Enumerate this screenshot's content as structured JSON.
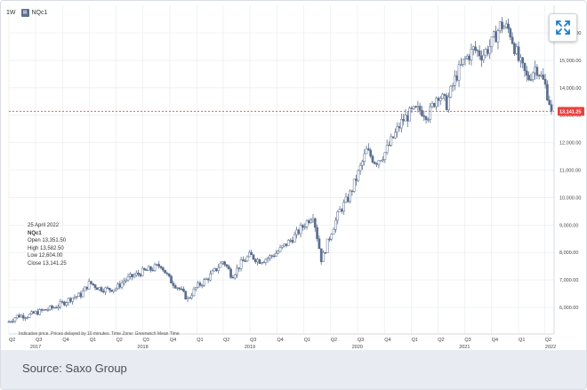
{
  "header": {
    "interval": "1W",
    "symbol": "NQc1"
  },
  "info": {
    "date": "25 April 2022",
    "symbol": "NQc1",
    "open": "Open 13,351.50",
    "high": "High 13,582.50",
    "low": "Low 12,604.00",
    "close": "Close 13,141.25"
  },
  "footer": {
    "note": "Indicative price. Prices delayed by 10 minutes.  Time Zone: Greenwich Mean Time",
    "source": "Source: Saxo Group"
  },
  "colors": {
    "candle": "#5b6f8f",
    "last_price_line": "#e8423f",
    "last_price_badge": "#e8423f",
    "grid": "#e6e9ee"
  },
  "icons": {
    "expand": "expand-arrows-icon"
  },
  "chart_data": {
    "type": "candlestick",
    "title": "",
    "xlabel": "",
    "ylabel": "",
    "ylim": [
      5500,
      16800
    ],
    "y_ticks": [
      6000,
      7000,
      8000,
      9000,
      10000,
      11000,
      12000,
      13000,
      14000,
      15000,
      16000
    ],
    "y_tick_labels": [
      "6,000.00",
      "7,000.00",
      "8,000.00",
      "9,000.00",
      "10,000.00",
      "11,000.00",
      "12,000.00",
      "13,000.00",
      "14,000.00",
      "15,000.00",
      "16,000.00"
    ],
    "x_range": [
      "2017-04-01",
      "2022-05-02"
    ],
    "x_ticks": [
      {
        "label": "Q2",
        "date": "2017-04-01"
      },
      {
        "label": "Q3",
        "date": "2017-07-01"
      },
      {
        "label": "Q4",
        "date": "2017-10-01"
      },
      {
        "label": "Q1",
        "date": "2018-01-01"
      },
      {
        "label": "Q2",
        "date": "2018-04-01"
      },
      {
        "label": "Q3",
        "date": "2018-07-01"
      },
      {
        "label": "Q4",
        "date": "2018-10-01"
      },
      {
        "label": "Q1",
        "date": "2019-01-01"
      },
      {
        "label": "Q2",
        "date": "2019-04-01"
      },
      {
        "label": "Q3",
        "date": "2019-07-01"
      },
      {
        "label": "Q4",
        "date": "2019-10-01"
      },
      {
        "label": "Q1",
        "date": "2020-01-01"
      },
      {
        "label": "Q2",
        "date": "2020-04-01"
      },
      {
        "label": "Q3",
        "date": "2020-07-01"
      },
      {
        "label": "Q4",
        "date": "2020-10-01"
      },
      {
        "label": "Q1",
        "date": "2021-01-01"
      },
      {
        "label": "Q2",
        "date": "2021-04-01"
      },
      {
        "label": "Q3",
        "date": "2021-07-01"
      },
      {
        "label": "Q4",
        "date": "2021-10-01"
      },
      {
        "label": "Q1",
        "date": "2022-01-01"
      },
      {
        "label": "Q2",
        "date": "2022-04-01"
      }
    ],
    "year_labels": [
      {
        "label": "2017",
        "date": "2017-07-01"
      },
      {
        "label": "2018",
        "date": "2018-07-01"
      },
      {
        "label": "2019",
        "date": "2019-07-01"
      },
      {
        "label": "2020",
        "date": "2020-07-01"
      },
      {
        "label": "2021",
        "date": "2021-07-01"
      },
      {
        "label": "2022",
        "date": "2022-04-20"
      }
    ],
    "last_price": 13141.25,
    "last_price_label": "13,141.25",
    "close_path": [
      [
        "2017-04-01",
        5480
      ],
      [
        "2017-05-01",
        5700
      ],
      [
        "2017-06-01",
        5690
      ],
      [
        "2017-07-01",
        5800
      ],
      [
        "2017-08-01",
        5900
      ],
      [
        "2017-09-01",
        6000
      ],
      [
        "2017-10-01",
        6150
      ],
      [
        "2017-11-01",
        6350
      ],
      [
        "2017-12-01",
        6450
      ],
      [
        "2018-01-01",
        6900
      ],
      [
        "2018-02-01",
        6700
      ],
      [
        "2018-03-01",
        6650
      ],
      [
        "2018-04-01",
        6700
      ],
      [
        "2018-05-01",
        7000
      ],
      [
        "2018-06-01",
        7150
      ],
      [
        "2018-07-01",
        7300
      ],
      [
        "2018-08-01",
        7400
      ],
      [
        "2018-09-01",
        7550
      ],
      [
        "2018-10-01",
        7000
      ],
      [
        "2018-11-01",
        6700
      ],
      [
        "2018-12-01",
        6300
      ],
      [
        "2019-01-01",
        6750
      ],
      [
        "2019-02-01",
        7000
      ],
      [
        "2019-03-01",
        7300
      ],
      [
        "2019-04-01",
        7700
      ],
      [
        "2019-05-01",
        7150
      ],
      [
        "2019-06-01",
        7600
      ],
      [
        "2019-07-01",
        7900
      ],
      [
        "2019-08-01",
        7700
      ],
      [
        "2019-09-01",
        7800
      ],
      [
        "2019-10-01",
        8000
      ],
      [
        "2019-11-01",
        8300
      ],
      [
        "2019-12-01",
        8600
      ],
      [
        "2020-01-01",
        9000
      ],
      [
        "2020-02-01",
        9400
      ],
      [
        "2020-03-01",
        7700
      ],
      [
        "2020-04-01",
        8700
      ],
      [
        "2020-05-01",
        9500
      ],
      [
        "2020-06-01",
        10000
      ],
      [
        "2020-07-01",
        10800
      ],
      [
        "2020-08-01",
        11700
      ],
      [
        "2020-09-01",
        11300
      ],
      [
        "2020-10-01",
        11600
      ],
      [
        "2020-11-01",
        12200
      ],
      [
        "2020-12-01",
        12800
      ],
      [
        "2021-01-01",
        13100
      ],
      [
        "2021-02-01",
        13200
      ],
      [
        "2021-03-01",
        13000
      ],
      [
        "2021-04-01",
        13800
      ],
      [
        "2021-05-01",
        13400
      ],
      [
        "2021-06-01",
        14400
      ],
      [
        "2021-07-01",
        15000
      ],
      [
        "2021-08-01",
        15400
      ],
      [
        "2021-09-01",
        15200
      ],
      [
        "2021-10-01",
        15600
      ],
      [
        "2021-11-01",
        16300
      ],
      [
        "2021-12-01",
        16100
      ],
      [
        "2022-01-01",
        15000
      ],
      [
        "2022-02-01",
        14300
      ],
      [
        "2022-03-01",
        14800
      ],
      [
        "2022-04-01",
        14100
      ],
      [
        "2022-04-25",
        13141
      ]
    ]
  }
}
